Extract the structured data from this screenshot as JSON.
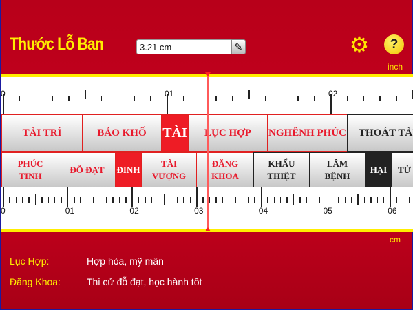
{
  "header": {
    "title": "Thước Lỗ Ban",
    "measurement_value": "3.21 cm",
    "edit_icon": "pencil-icon",
    "settings_icon": "gear-icon",
    "help_icon": "question-icon",
    "help_glyph": "?"
  },
  "top_ruler": {
    "unit": "inch",
    "labels": [
      "0",
      "01",
      "02"
    ]
  },
  "bottom_ruler": {
    "unit": "cm",
    "labels": [
      "0",
      "01",
      "02",
      "03",
      "04",
      "05",
      "06"
    ]
  },
  "top_row": [
    {
      "label": "TÀI TRÍ",
      "style": "red"
    },
    {
      "label": "BẢO KHỐ",
      "style": "red"
    },
    {
      "label": "TÀI",
      "style": "fill"
    },
    {
      "label": "LỤC HỢP",
      "style": "red"
    },
    {
      "label": "NGHÊNH PHÚC",
      "style": "red"
    },
    {
      "label": "THOÁT TÀI",
      "style": "black"
    }
  ],
  "bottom_row": [
    {
      "label": "PHÚC TINH",
      "style": "red"
    },
    {
      "label": "ĐỖ ĐẠT",
      "style": "red"
    },
    {
      "label": "ĐINH",
      "style": "fill"
    },
    {
      "label": "TÀI VƯỢNG",
      "style": "red"
    },
    {
      "label": "ĐĂNG KHOA",
      "style": "red"
    },
    {
      "label": "KHẨU THIỆT",
      "style": "black"
    },
    {
      "label": "LÂM BỆNH",
      "style": "black"
    },
    {
      "label": "HẠI",
      "style": "blackfill"
    },
    {
      "label": "TỬ TUYỆT",
      "style": "black"
    }
  ],
  "info": [
    {
      "key": "Lục Hợp:",
      "value": "Hợp hòa, mỹ mãn"
    },
    {
      "key": "Đăng Khoa:",
      "value": "Thi cử đỗ đạt, học hành tốt"
    }
  ],
  "colors": {
    "background": "#c0001a",
    "accent": "#ffee00",
    "cursor": "#ff5a5a",
    "good": "#e8192c",
    "bad": "#222222"
  }
}
